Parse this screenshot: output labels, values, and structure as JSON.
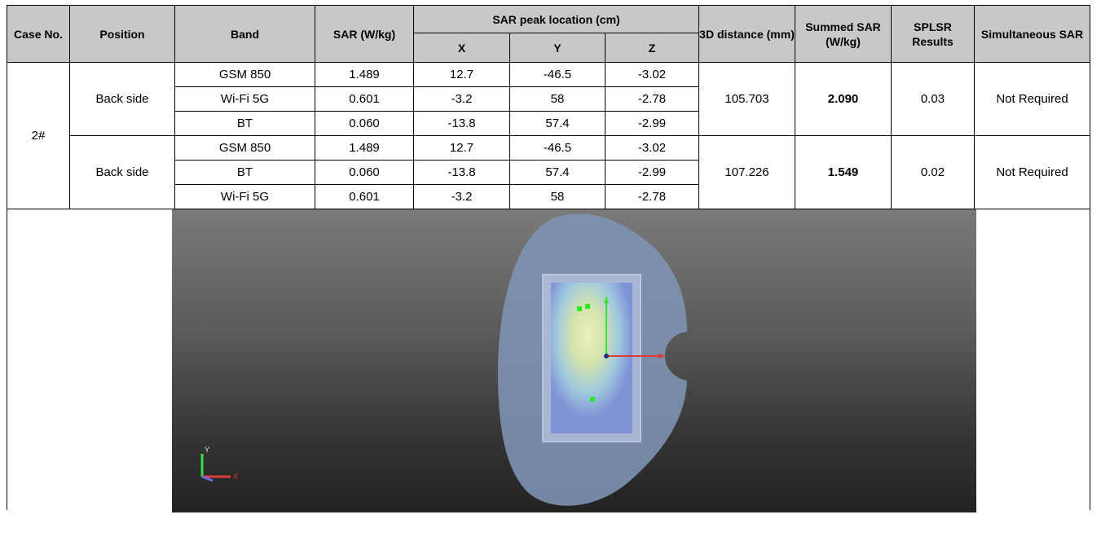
{
  "table": {
    "headers": {
      "case_no": "Case No.",
      "position": "Position",
      "band": "Band",
      "sar": "SAR (W/kg)",
      "peak_location": "SAR peak location (cm)",
      "x": "X",
      "y": "Y",
      "z": "Z",
      "distance": "3D distance (mm)",
      "summed_sar": "Summed SAR (W/kg)",
      "splsr": "SPLSR Results",
      "simultaneous": "Simultaneous SAR"
    },
    "case": "2#",
    "groups": [
      {
        "position": "Back side",
        "distance": "105.703",
        "summed_sar": "2.090",
        "splsr": "0.03",
        "simultaneous": "Not Required",
        "rows": [
          {
            "band": "GSM 850",
            "sar": "1.489",
            "x": "12.7",
            "y": "-46.5",
            "z": "-3.02"
          },
          {
            "band": "Wi-Fi 5G",
            "sar": "0.601",
            "x": "-3.2",
            "y": "58",
            "z": "-2.78"
          },
          {
            "band": "BT",
            "sar": "0.060",
            "x": "-13.8",
            "y": "57.4",
            "z": "-2.99"
          }
        ]
      },
      {
        "position": "Back side",
        "distance": "107.226",
        "summed_sar": "1.549",
        "splsr": "0.02",
        "simultaneous": "Not Required",
        "rows": [
          {
            "band": "GSM 850",
            "sar": "1.489",
            "x": "12.7",
            "y": "-46.5",
            "z": "-3.02"
          },
          {
            "band": "BT",
            "sar": "0.060",
            "x": "-13.8",
            "y": "57.4",
            "z": "-2.99"
          },
          {
            "band": "Wi-Fi 5G",
            "sar": "0.601",
            "x": "-3.2",
            "y": "58",
            "z": "-2.78"
          }
        ]
      }
    ]
  },
  "image": {
    "axis_labels": {
      "y": "Y",
      "x": "X"
    }
  }
}
